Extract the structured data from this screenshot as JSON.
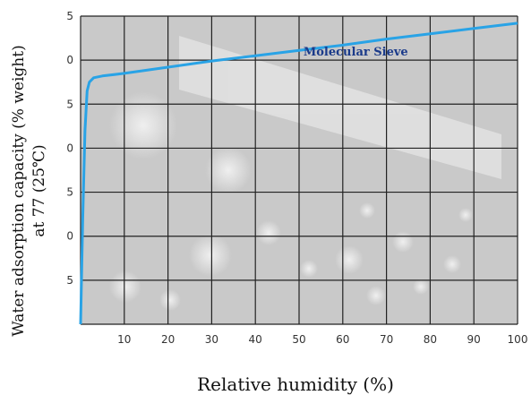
{
  "chart_data": {
    "type": "line",
    "xlabel": "Relative humidity (%)",
    "ylabel_line1": "Water adsorption capacity (% weight)",
    "ylabel_line2": "at 77 (25℃)",
    "x_ticks": [
      "10",
      "20",
      "30",
      "40",
      "50",
      "60",
      "70",
      "80",
      "90",
      "100"
    ],
    "y_ticks": [
      "5",
      "0",
      "5",
      "0",
      "5",
      "0",
      "5"
    ],
    "xlim": [
      0,
      100
    ],
    "ylim": [
      0,
      35
    ],
    "grid": true,
    "series": [
      {
        "name": "Molecular Sieve",
        "color": "#29a3e6",
        "x": [
          0,
          0.5,
          1,
          1.5,
          2,
          3,
          5,
          10,
          20,
          30,
          40,
          50,
          60,
          70,
          80,
          90,
          100
        ],
        "y": [
          0,
          12,
          22,
          26.5,
          27.5,
          28,
          28.2,
          28.5,
          29.2,
          29.9,
          30.5,
          31.1,
          31.7,
          32.4,
          33.0,
          33.6,
          34.2
        ]
      }
    ],
    "annotations": [
      {
        "text": "Molecular Sieve",
        "x": 51,
        "y": 30.5
      }
    ]
  }
}
